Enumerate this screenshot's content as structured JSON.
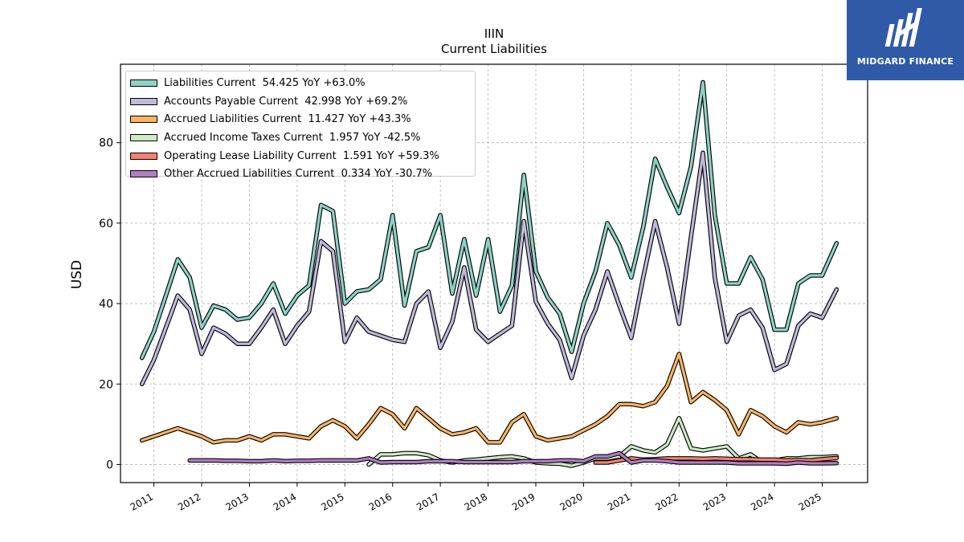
{
  "logo": {
    "brand": "MIDGARD FINANCE",
    "icon": "midgard-logo-icon"
  },
  "chart_data": {
    "type": "line",
    "title": "IIIN",
    "subtitle": "Current  Liabilities",
    "ylabel": "USD",
    "xlabel": "",
    "ylim": [
      -4.5,
      99.5
    ],
    "xlim": [
      2010.3,
      2025.95
    ],
    "yticks": [
      0,
      20,
      40,
      60,
      80
    ],
    "xticks": [
      "2011",
      "2012",
      "2013",
      "2014",
      "2015",
      "2016",
      "2017",
      "2018",
      "2019",
      "2020",
      "2021",
      "2022",
      "2023",
      "2024",
      "2025"
    ],
    "grid": true,
    "legend_position": "upper-left",
    "series": [
      {
        "name": "Liabilities Current  54.425 YoY +63.0%",
        "color": "#8dd3c7",
        "points": [
          [
            2010.75,
            26.5
          ],
          [
            2011.0,
            33.0
          ],
          [
            2011.25,
            42.0
          ],
          [
            2011.5,
            51.0
          ],
          [
            2011.75,
            46.5
          ],
          [
            2012.0,
            34.0
          ],
          [
            2012.25,
            39.5
          ],
          [
            2012.5,
            38.5
          ],
          [
            2012.75,
            36.0
          ],
          [
            2013.0,
            36.5
          ],
          [
            2013.25,
            40.0
          ],
          [
            2013.5,
            45.0
          ],
          [
            2013.75,
            37.5
          ],
          [
            2014.0,
            42.0
          ],
          [
            2014.25,
            44.5
          ],
          [
            2014.5,
            64.5
          ],
          [
            2014.75,
            63.0
          ],
          [
            2015.0,
            40.0
          ],
          [
            2015.25,
            43.0
          ],
          [
            2015.5,
            43.5
          ],
          [
            2015.75,
            46.0
          ],
          [
            2016.0,
            62.0
          ],
          [
            2016.25,
            39.5
          ],
          [
            2016.5,
            53.0
          ],
          [
            2016.75,
            54.0
          ],
          [
            2017.0,
            62.0
          ],
          [
            2017.25,
            42.5
          ],
          [
            2017.5,
            56.0
          ],
          [
            2017.75,
            42.0
          ],
          [
            2018.0,
            56.0
          ],
          [
            2018.25,
            38.0
          ],
          [
            2018.5,
            44.5
          ],
          [
            2018.75,
            72.0
          ],
          [
            2019.0,
            48.0
          ],
          [
            2019.25,
            41.5
          ],
          [
            2019.5,
            37.5
          ],
          [
            2019.75,
            28.0
          ],
          [
            2020.0,
            40.0
          ],
          [
            2020.25,
            48.0
          ],
          [
            2020.5,
            60.0
          ],
          [
            2020.75,
            54.5
          ],
          [
            2021.0,
            46.5
          ],
          [
            2021.25,
            59.0
          ],
          [
            2021.5,
            76.0
          ],
          [
            2021.75,
            69.0
          ],
          [
            2022.0,
            62.5
          ],
          [
            2022.25,
            74.0
          ],
          [
            2022.5,
            95.0
          ],
          [
            2022.75,
            62.0
          ],
          [
            2023.0,
            45.0
          ],
          [
            2023.25,
            45.0
          ],
          [
            2023.5,
            51.5
          ],
          [
            2023.75,
            46.0
          ],
          [
            2024.0,
            33.5
          ],
          [
            2024.25,
            33.5
          ],
          [
            2024.5,
            45.0
          ],
          [
            2024.75,
            47.0
          ],
          [
            2025.0,
            47.0
          ],
          [
            2025.3,
            55.0
          ]
        ]
      },
      {
        "name": "Accounts Payable Current  42.998 YoY +69.2%",
        "color": "#bebada",
        "points": [
          [
            2010.75,
            20.0
          ],
          [
            2011.0,
            26.0
          ],
          [
            2011.25,
            34.0
          ],
          [
            2011.5,
            42.0
          ],
          [
            2011.75,
            38.5
          ],
          [
            2012.0,
            27.5
          ],
          [
            2012.25,
            34.0
          ],
          [
            2012.5,
            32.5
          ],
          [
            2012.75,
            30.0
          ],
          [
            2013.0,
            30.0
          ],
          [
            2013.25,
            34.0
          ],
          [
            2013.5,
            38.5
          ],
          [
            2013.75,
            30.0
          ],
          [
            2014.0,
            34.5
          ],
          [
            2014.25,
            38.0
          ],
          [
            2014.5,
            55.5
          ],
          [
            2014.75,
            53.0
          ],
          [
            2015.0,
            30.5
          ],
          [
            2015.25,
            36.5
          ],
          [
            2015.5,
            33.0
          ],
          [
            2015.75,
            32.0
          ],
          [
            2016.0,
            31.0
          ],
          [
            2016.25,
            30.5
          ],
          [
            2016.5,
            40.0
          ],
          [
            2016.75,
            43.0
          ],
          [
            2017.0,
            29.0
          ],
          [
            2017.25,
            35.5
          ],
          [
            2017.5,
            49.0
          ],
          [
            2017.75,
            33.5
          ],
          [
            2018.0,
            30.5
          ],
          [
            2018.25,
            32.5
          ],
          [
            2018.5,
            34.5
          ],
          [
            2018.75,
            60.5
          ],
          [
            2019.0,
            40.5
          ],
          [
            2019.25,
            35.0
          ],
          [
            2019.5,
            31.0
          ],
          [
            2019.75,
            21.5
          ],
          [
            2020.0,
            32.0
          ],
          [
            2020.25,
            38.5
          ],
          [
            2020.5,
            48.0
          ],
          [
            2020.75,
            39.5
          ],
          [
            2021.0,
            31.5
          ],
          [
            2021.25,
            46.5
          ],
          [
            2021.5,
            60.5
          ],
          [
            2021.75,
            49.0
          ],
          [
            2022.0,
            35.0
          ],
          [
            2022.25,
            56.5
          ],
          [
            2022.5,
            77.5
          ],
          [
            2022.75,
            46.5
          ],
          [
            2023.0,
            30.5
          ],
          [
            2023.25,
            37.0
          ],
          [
            2023.5,
            38.5
          ],
          [
            2023.75,
            34.0
          ],
          [
            2024.0,
            23.5
          ],
          [
            2024.25,
            25.0
          ],
          [
            2024.5,
            34.5
          ],
          [
            2024.75,
            37.5
          ],
          [
            2025.0,
            36.5
          ],
          [
            2025.3,
            43.5
          ]
        ]
      },
      {
        "name": "Accrued Liabilities Current  11.427 YoY +43.3%",
        "color": "#fdb462",
        "points": [
          [
            2010.75,
            6.0
          ],
          [
            2011.0,
            7.0
          ],
          [
            2011.25,
            8.0
          ],
          [
            2011.5,
            9.0
          ],
          [
            2011.75,
            8.0
          ],
          [
            2012.0,
            7.0
          ],
          [
            2012.25,
            5.5
          ],
          [
            2012.5,
            6.0
          ],
          [
            2012.75,
            6.0
          ],
          [
            2013.0,
            7.0
          ],
          [
            2013.25,
            6.0
          ],
          [
            2013.5,
            7.5
          ],
          [
            2013.75,
            7.5
          ],
          [
            2014.0,
            7.0
          ],
          [
            2014.25,
            6.5
          ],
          [
            2014.5,
            9.5
          ],
          [
            2014.75,
            11.0
          ],
          [
            2015.0,
            9.5
          ],
          [
            2015.25,
            6.5
          ],
          [
            2015.5,
            10.0
          ],
          [
            2015.75,
            14.0
          ],
          [
            2016.0,
            12.5
          ],
          [
            2016.25,
            9.0
          ],
          [
            2016.5,
            14.0
          ],
          [
            2016.75,
            11.5
          ],
          [
            2017.0,
            9.0
          ],
          [
            2017.25,
            7.5
          ],
          [
            2017.5,
            8.0
          ],
          [
            2017.75,
            9.0
          ],
          [
            2018.0,
            5.5
          ],
          [
            2018.25,
            5.5
          ],
          [
            2018.5,
            10.5
          ],
          [
            2018.75,
            12.5
          ],
          [
            2019.0,
            7.0
          ],
          [
            2019.25,
            6.0
          ],
          [
            2019.5,
            6.5
          ],
          [
            2019.75,
            7.0
          ],
          [
            2020.0,
            8.5
          ],
          [
            2020.25,
            10.0
          ],
          [
            2020.5,
            12.0
          ],
          [
            2020.75,
            15.0
          ],
          [
            2021.0,
            15.0
          ],
          [
            2021.25,
            14.5
          ],
          [
            2021.5,
            15.5
          ],
          [
            2021.75,
            19.5
          ],
          [
            2022.0,
            27.5
          ],
          [
            2022.25,
            15.5
          ],
          [
            2022.5,
            18.0
          ],
          [
            2022.75,
            16.0
          ],
          [
            2023.0,
            13.5
          ],
          [
            2023.25,
            7.5
          ],
          [
            2023.5,
            13.5
          ],
          [
            2023.75,
            12.0
          ],
          [
            2024.0,
            9.5
          ],
          [
            2024.25,
            8.0
          ],
          [
            2024.5,
            10.5
          ],
          [
            2024.75,
            10.0
          ],
          [
            2025.0,
            10.5
          ],
          [
            2025.3,
            11.5
          ]
        ]
      },
      {
        "name": "Accrued Income Taxes Current  1.957 YoY -42.5%",
        "color": "#ccebc5",
        "points": [
          [
            2015.5,
            0.0
          ],
          [
            2015.75,
            2.5
          ],
          [
            2016.0,
            2.5
          ],
          [
            2016.25,
            2.8
          ],
          [
            2016.5,
            2.8
          ],
          [
            2016.75,
            2.3
          ],
          [
            2017.0,
            1.0
          ],
          [
            2017.25,
            0.5
          ],
          [
            2017.5,
            1.0
          ],
          [
            2017.75,
            1.2
          ],
          [
            2018.0,
            1.5
          ],
          [
            2018.25,
            1.8
          ],
          [
            2018.5,
            2.0
          ],
          [
            2018.75,
            1.5
          ],
          [
            2019.0,
            0.5
          ],
          [
            2019.25,
            0.3
          ],
          [
            2019.5,
            0.2
          ],
          [
            2019.75,
            -0.3
          ],
          [
            2020.0,
            0.5
          ],
          [
            2020.25,
            1.5
          ],
          [
            2020.5,
            1.5
          ],
          [
            2020.75,
            2.0
          ],
          [
            2021.0,
            4.5
          ],
          [
            2021.25,
            3.5
          ],
          [
            2021.5,
            3.0
          ],
          [
            2021.75,
            5.0
          ],
          [
            2022.0,
            11.5
          ],
          [
            2022.25,
            4.0
          ],
          [
            2022.5,
            3.5
          ],
          [
            2022.75,
            4.0
          ],
          [
            2023.0,
            4.5
          ],
          [
            2023.25,
            1.5
          ],
          [
            2023.5,
            2.5
          ],
          [
            2023.75,
            0.5
          ],
          [
            2024.0,
            1.0
          ],
          [
            2024.25,
            1.5
          ],
          [
            2024.5,
            1.5
          ],
          [
            2024.75,
            1.8
          ],
          [
            2025.0,
            1.8
          ],
          [
            2025.3,
            2.0
          ]
        ]
      },
      {
        "name": "Operating Lease Liability Current  1.591 YoY +59.3%",
        "color": "#fb8072",
        "points": [
          [
            2020.25,
            0.5
          ],
          [
            2020.5,
            0.5
          ],
          [
            2020.75,
            1.0
          ],
          [
            2021.0,
            1.5
          ],
          [
            2021.25,
            1.2
          ],
          [
            2021.5,
            1.3
          ],
          [
            2021.75,
            1.5
          ],
          [
            2022.0,
            1.5
          ],
          [
            2022.25,
            1.5
          ],
          [
            2022.5,
            1.4
          ],
          [
            2022.75,
            1.5
          ],
          [
            2023.0,
            1.4
          ],
          [
            2023.25,
            1.3
          ],
          [
            2023.5,
            1.3
          ],
          [
            2023.75,
            1.2
          ],
          [
            2024.0,
            1.2
          ],
          [
            2024.25,
            1.0
          ],
          [
            2024.5,
            1.1
          ],
          [
            2024.75,
            1.0
          ],
          [
            2025.0,
            1.3
          ],
          [
            2025.3,
            1.6
          ]
        ]
      },
      {
        "name": "Other Accrued Liabilities Current  0.334 YoY -30.7%",
        "color": "#b07ec2",
        "points": [
          [
            2011.75,
            1.0
          ],
          [
            2012.0,
            1.0
          ],
          [
            2012.25,
            1.0
          ],
          [
            2012.5,
            0.9
          ],
          [
            2012.75,
            0.9
          ],
          [
            2013.0,
            0.8
          ],
          [
            2013.25,
            0.8
          ],
          [
            2013.5,
            1.0
          ],
          [
            2013.75,
            0.8
          ],
          [
            2014.0,
            0.9
          ],
          [
            2014.25,
            0.9
          ],
          [
            2014.5,
            1.0
          ],
          [
            2014.75,
            1.0
          ],
          [
            2015.0,
            1.0
          ],
          [
            2015.25,
            1.0
          ],
          [
            2015.5,
            1.5
          ],
          [
            2015.75,
            0.5
          ],
          [
            2016.0,
            0.6
          ],
          [
            2016.25,
            0.6
          ],
          [
            2016.5,
            0.6
          ],
          [
            2016.75,
            0.8
          ],
          [
            2017.0,
            0.8
          ],
          [
            2017.25,
            0.8
          ],
          [
            2017.5,
            0.6
          ],
          [
            2017.75,
            0.6
          ],
          [
            2018.0,
            0.6
          ],
          [
            2018.25,
            0.6
          ],
          [
            2018.5,
            0.6
          ],
          [
            2018.75,
            0.8
          ],
          [
            2019.0,
            0.8
          ],
          [
            2019.25,
            0.8
          ],
          [
            2019.5,
            1.0
          ],
          [
            2019.75,
            1.0
          ],
          [
            2020.0,
            0.8
          ],
          [
            2020.25,
            2.0
          ],
          [
            2020.5,
            2.0
          ],
          [
            2020.75,
            2.8
          ],
          [
            2021.0,
            0.5
          ],
          [
            2021.25,
            1.0
          ],
          [
            2021.5,
            1.0
          ],
          [
            2021.75,
            0.8
          ],
          [
            2022.0,
            0.5
          ],
          [
            2022.25,
            0.5
          ],
          [
            2022.5,
            0.5
          ],
          [
            2022.75,
            0.5
          ],
          [
            2023.0,
            0.5
          ],
          [
            2023.25,
            0.3
          ],
          [
            2023.5,
            0.3
          ],
          [
            2023.75,
            0.3
          ],
          [
            2024.0,
            0.3
          ],
          [
            2024.25,
            0.2
          ],
          [
            2024.5,
            0.5
          ],
          [
            2024.75,
            0.3
          ],
          [
            2025.0,
            0.3
          ],
          [
            2025.3,
            0.33
          ]
        ]
      }
    ]
  }
}
